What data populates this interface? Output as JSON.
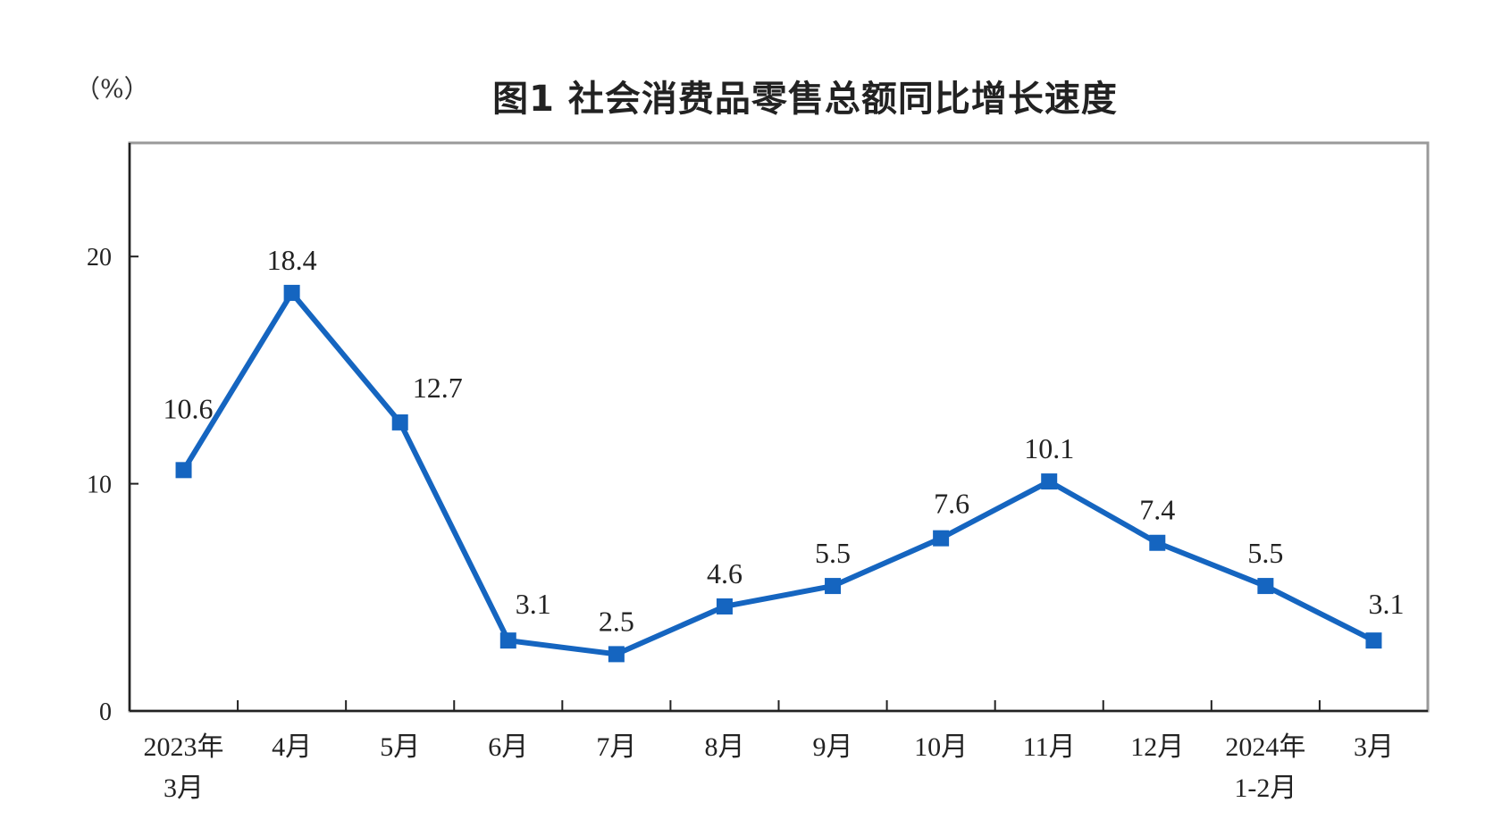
{
  "chart_data": {
    "type": "line",
    "title": "图1  社会消费品零售总额同比增长速度",
    "unit": "（%）",
    "categories": [
      [
        "2023年",
        "3月"
      ],
      [
        "4月"
      ],
      [
        "5月"
      ],
      [
        "6月"
      ],
      [
        "7月"
      ],
      [
        "8月"
      ],
      [
        "9月"
      ],
      [
        "10月"
      ],
      [
        "11月"
      ],
      [
        "12月"
      ],
      [
        "2024年",
        "1-2月"
      ],
      [
        "3月"
      ]
    ],
    "series": [
      {
        "values": [
          10.6,
          18.4,
          12.7,
          3.1,
          2.5,
          4.6,
          5.5,
          7.6,
          10.1,
          7.4,
          5.5,
          3.1
        ],
        "labels": [
          "10.6",
          "18.4",
          "12.7",
          "3.1",
          "2.5",
          "4.6",
          "5.5",
          "7.6",
          "10.1",
          "7.4",
          "5.5",
          "3.1"
        ],
        "color": "#1565C0"
      }
    ],
    "ylim": [
      0,
      25
    ],
    "yticks": [
      0,
      10,
      20
    ],
    "grid": false,
    "legend": "none"
  }
}
